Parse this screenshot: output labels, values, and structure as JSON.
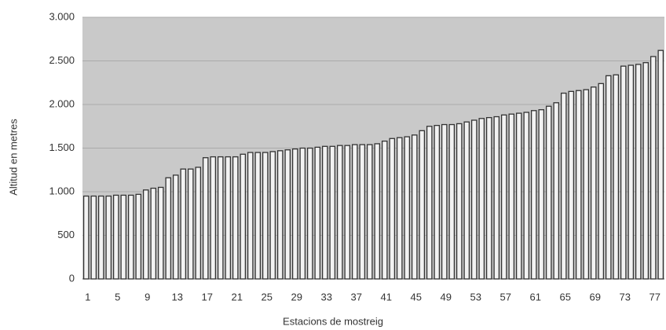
{
  "chart_data": {
    "type": "bar",
    "x_label": "Estacions de mostreig",
    "y_label": "Altitud en metres",
    "categories": [
      "1",
      null,
      null,
      null,
      "5",
      null,
      null,
      null,
      "9",
      null,
      null,
      null,
      "13",
      null,
      null,
      null,
      "17",
      null,
      null,
      null,
      "21",
      null,
      null,
      null,
      "25",
      null,
      null,
      null,
      "29",
      null,
      null,
      null,
      "33",
      null,
      null,
      null,
      "37",
      null,
      null,
      null,
      "41",
      null,
      null,
      null,
      "45",
      null,
      null,
      null,
      "49",
      null,
      null,
      null,
      "53",
      null,
      null,
      null,
      "57",
      null,
      null,
      null,
      "61",
      null,
      null,
      null,
      "65",
      null,
      null,
      null,
      "69",
      null,
      null,
      null,
      "73",
      null,
      null,
      null,
      "77",
      null
    ],
    "values": [
      950,
      950,
      950,
      950,
      960,
      960,
      960,
      970,
      1020,
      1040,
      1050,
      1160,
      1190,
      1260,
      1260,
      1280,
      1390,
      1400,
      1400,
      1400,
      1400,
      1430,
      1450,
      1450,
      1450,
      1460,
      1470,
      1480,
      1490,
      1500,
      1500,
      1510,
      1520,
      1520,
      1530,
      1530,
      1540,
      1540,
      1540,
      1550,
      1580,
      1610,
      1620,
      1630,
      1650,
      1700,
      1750,
      1760,
      1770,
      1770,
      1780,
      1800,
      1820,
      1840,
      1850,
      1860,
      1880,
      1890,
      1900,
      1910,
      1930,
      1940,
      1980,
      2020,
      2130,
      2150,
      2160,
      2170,
      2200,
      2240,
      2330,
      2340,
      2440,
      2450,
      2460,
      2480,
      2550,
      2620
    ],
    "color": "#f2f2f2",
    "background": "#c9c9c9",
    "ylim": [
      0,
      3000
    ],
    "yticks": [
      0,
      500,
      {
        "value": 1000,
        "label": "1.000"
      },
      {
        "value": 1500,
        "label": "1.500"
      },
      {
        "value": 2000,
        "label": "2.000"
      },
      {
        "value": 2500,
        "label": "2.500"
      },
      {
        "value": 3000,
        "label": "3.000"
      }
    ],
    "grid": true
  }
}
